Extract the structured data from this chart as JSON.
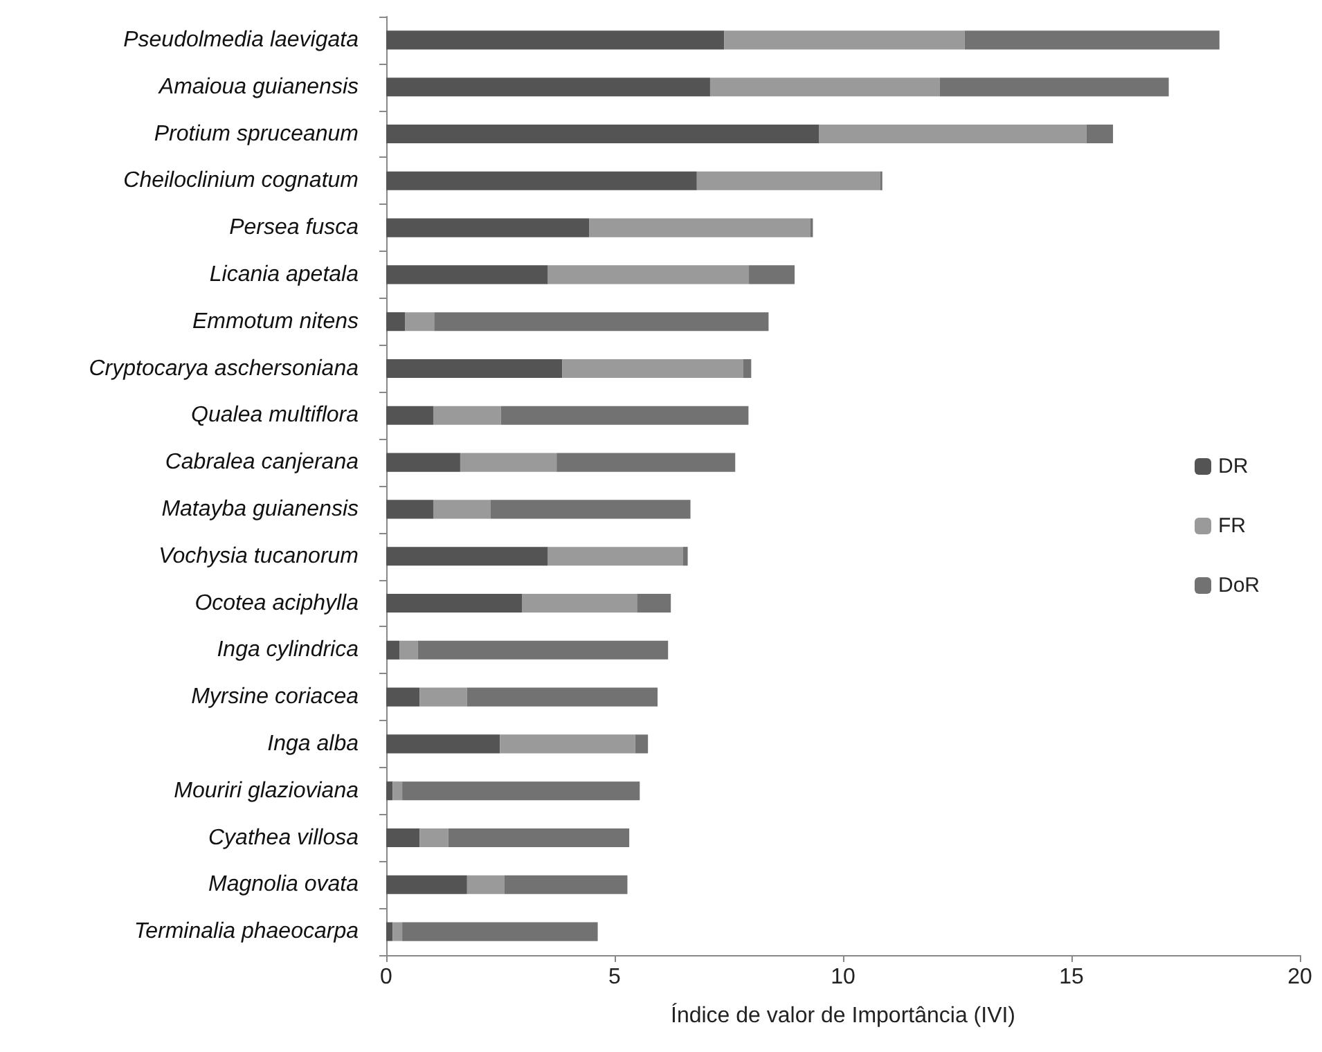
{
  "chart_data": {
    "type": "bar",
    "orientation": "horizontal",
    "stacked": true,
    "xlabel": "Índice de valor de Importância (IVI)",
    "categories": [
      "Pseudolmedia laevigata",
      "Amaioua guianensis",
      "Protium spruceanum",
      "Cheiloclinium cognatum",
      "Persea fusca",
      "Licania apetala",
      "Emmotum nitens",
      "Cryptocarya aschersoniana",
      "Qualea multiflora",
      "Cabralea canjerana",
      "Matayba guianensis",
      "Vochysia tucanorum",
      "Ocotea aciphylla",
      "Inga cylindrica",
      "Myrsine coriacea",
      "Inga alba",
      "Mouriri glazioviana",
      "Cyathea villosa",
      "Magnolia ovata",
      "Terminalia phaeocarpa"
    ],
    "series": [
      {
        "name": "DR",
        "color": "#545454",
        "values": [
          7.4,
          7.09,
          9.47,
          6.8,
          4.44,
          3.54,
          0.41,
          3.85,
          1.03,
          1.62,
          1.03,
          3.54,
          2.97,
          0.29,
          0.73,
          2.49,
          0.14,
          0.73,
          1.77,
          0.14
        ]
      },
      {
        "name": "FR",
        "color": "#9a9a9a",
        "values": [
          5.26,
          5.03,
          5.86,
          4.01,
          4.84,
          4.4,
          0.64,
          3.96,
          1.48,
          2.11,
          1.25,
          2.96,
          2.52,
          0.4,
          1.04,
          2.96,
          0.21,
          0.63,
          0.82,
          0.21
        ]
      },
      {
        "name": "DoR",
        "color": "#727272",
        "values": [
          5.58,
          5.01,
          0.58,
          0.05,
          0.06,
          1.0,
          7.32,
          0.18,
          5.42,
          3.91,
          4.38,
          0.1,
          0.74,
          5.48,
          4.17,
          0.28,
          5.2,
          3.96,
          2.69,
          4.28
        ]
      }
    ],
    "xlim": [
      0,
      20
    ],
    "xticks": [
      0,
      5,
      10,
      15,
      20
    ],
    "grid": false,
    "legend": "right"
  }
}
